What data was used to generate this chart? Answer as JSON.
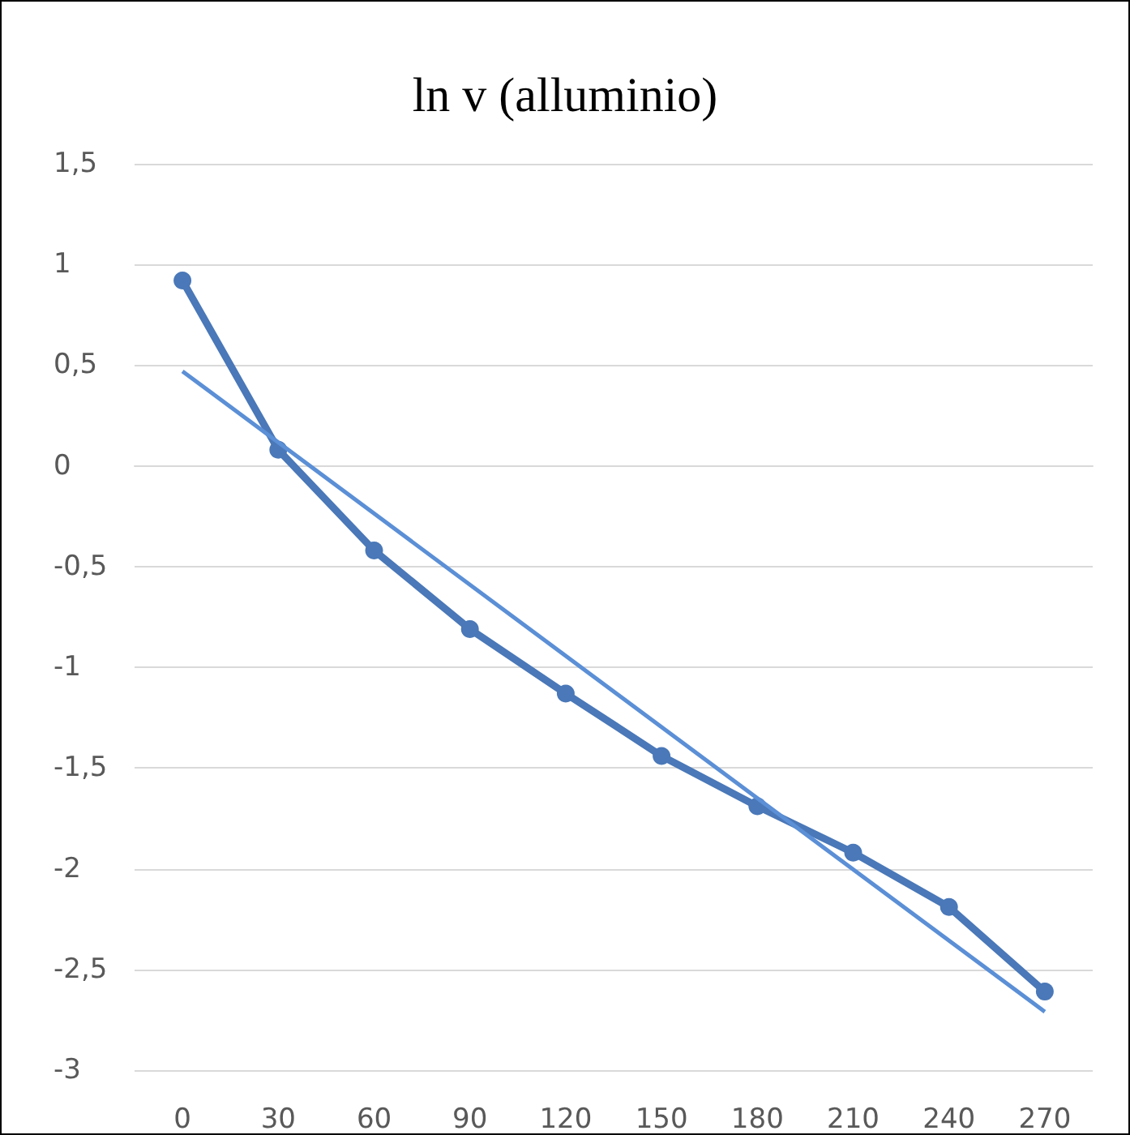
{
  "chart_data": {
    "type": "line",
    "title": "ln v (alluminio)",
    "categories": [
      "0",
      "30",
      "60",
      "90",
      "120",
      "150",
      "180",
      "210",
      "240",
      "270"
    ],
    "series": [
      {
        "color": "#4a78b8",
        "values": [
          0.92,
          0.08,
          -0.42,
          -0.81,
          -1.13,
          -1.44,
          -1.69,
          -1.92,
          -2.19,
          -2.61
        ]
      },
      {
        "type": "line",
        "color": "#5b8fd6",
        "marker": "none",
        "x": [
          "0",
          "270"
        ],
        "values": [
          0.47,
          -2.71
        ]
      }
    ],
    "ylim": [
      -3,
      1.5
    ],
    "yticks": [
      -3,
      {
        "value": -2.5,
        "label": "-2,5"
      },
      -2,
      {
        "value": -1.5,
        "label": "-1,5"
      },
      -1,
      {
        "value": -0.5,
        "label": "-0,5"
      },
      0,
      {
        "value": 0.5,
        "label": "0,5"
      },
      1,
      {
        "value": 1.5,
        "label": "1,5"
      }
    ],
    "grid": "y",
    "marker": "circle"
  }
}
